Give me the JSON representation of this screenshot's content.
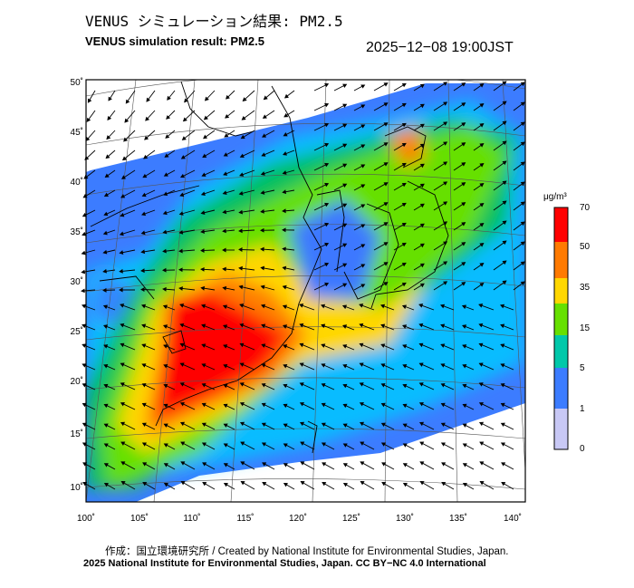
{
  "title_jp": "VENUS シミュレーション結果: PM2.5",
  "title_en": "VENUS simulation result: PM2.5",
  "datetime": "2025−12−08 19:00JST",
  "lat_labels": [
    "50˚",
    "45˚",
    "40˚",
    "35˚",
    "30˚",
    "25˚",
    "20˚",
    "15˚",
    "10˚"
  ],
  "lon_labels": [
    "100˚",
    "105˚",
    "110˚",
    "115˚",
    "120˚",
    "125˚",
    "130˚",
    "135˚",
    "140˚"
  ],
  "colorbar": {
    "unit": "μg/m³",
    "ticks": [
      "70",
      "50",
      "35",
      "15",
      "5",
      "1",
      "0"
    ],
    "colors": [
      "#ff0000",
      "#ff8000",
      "#ffd700",
      "#66e000",
      "#00c060",
      "#00c8ff",
      "#3c78ff",
      "#ffffff"
    ]
  },
  "credit_line1": "作成：国立環境研究所 / Created by National Institute for Environmental Studies, Japan.",
  "credit_line2": "2025 National Institute for Environmental Studies, Japan. CC BY−NC 4.0 International"
}
